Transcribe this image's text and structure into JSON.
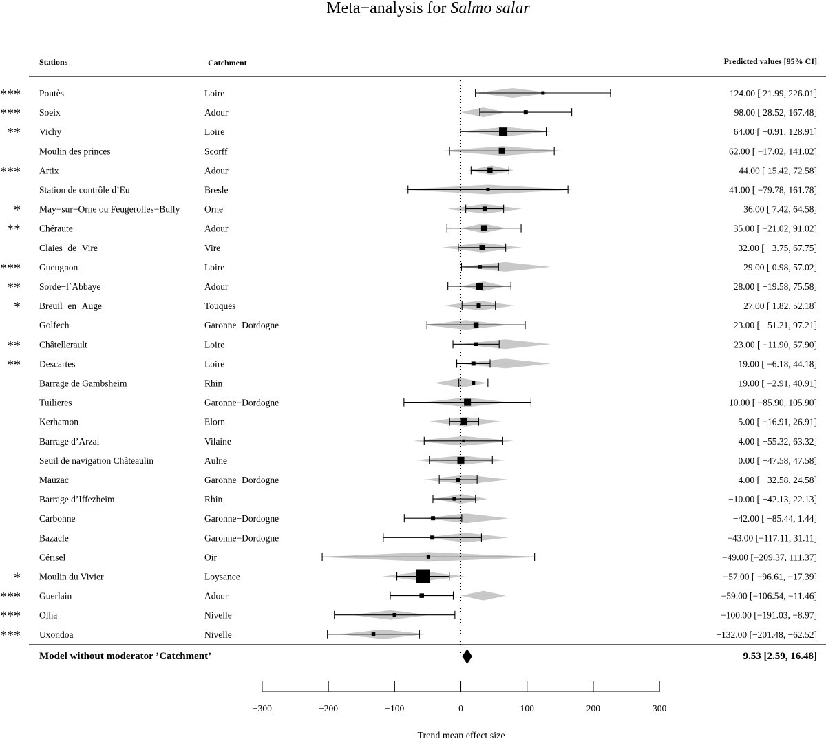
{
  "chart_data": {
    "type": "forest",
    "title_main": "Meta−analysis for ",
    "title_italic": "Salmo salar",
    "headers": {
      "stations": "Stations",
      "catchment": "Catchment",
      "predicted": "Predicted values [95% CI]"
    },
    "xlabel": "Trend mean effect size",
    "xlim": [
      -300,
      300
    ],
    "xticks": [
      -300,
      -200,
      -100,
      0,
      100,
      200,
      300
    ],
    "xtick_labels": [
      "−300",
      "−200",
      "−100",
      "0",
      "100",
      "200",
      "300"
    ],
    "rows": [
      {
        "sig": "***",
        "station": "Poutès",
        "catchment": "Loire",
        "est": 124.0,
        "lo": 21.99,
        "hi": 226.01,
        "label": "124.00 [  21.99, 226.01]",
        "poly": [
          22,
          135
        ],
        "weight": 1.0
      },
      {
        "sig": "***",
        "station": "Soeix",
        "catchment": "Adour",
        "est": 98.0,
        "lo": 28.52,
        "hi": 167.48,
        "label": "98.00 [  28.52, 167.48]",
        "poly": [
          0,
          68
        ],
        "weight": 1.2
      },
      {
        "sig": "**",
        "station": "Vichy",
        "catchment": "Loire",
        "est": 64.0,
        "lo": -0.91,
        "hi": 128.91,
        "label": "64.00 [  −0.91, 128.91]",
        "poly": [
          -2,
          136
        ],
        "weight": 2.4
      },
      {
        "sig": "",
        "station": "Moulin des princes",
        "catchment": "Scorff",
        "est": 62.0,
        "lo": -17.02,
        "hi": 141.02,
        "label": "62.00 [ −17.02, 141.02]",
        "poly": [
          -30,
          156
        ],
        "weight": 1.8
      },
      {
        "sig": "***",
        "station": "Artix",
        "catchment": "Adour",
        "est": 44.0,
        "lo": 15.42,
        "hi": 72.58,
        "label": "44.00 [  15.42,  72.58]",
        "poly": [
          12,
          80
        ],
        "weight": 1.5
      },
      {
        "sig": "",
        "station": "Station de contrôle d’Eu",
        "catchment": "Bresle",
        "est": 41.0,
        "lo": -79.78,
        "hi": 161.78,
        "label": "41.00 [ −79.78, 161.78]",
        "poly": [
          -88,
          170
        ],
        "weight": 1.0
      },
      {
        "sig": "*",
        "station": "May−sur−Orne ou Feugerolles−Bully",
        "catchment": "Orne",
        "est": 36.0,
        "lo": 7.42,
        "hi": 64.58,
        "label": "36.00 [   7.42,  64.58]",
        "poly": [
          -20,
          92
        ],
        "weight": 1.3
      },
      {
        "sig": "**",
        "station": "Chéraute",
        "catchment": "Adour",
        "est": 35.0,
        "lo": -21.02,
        "hi": 91.02,
        "label": "35.00 [ −21.02,  91.02]",
        "poly": [
          0,
          68
        ],
        "weight": 1.7
      },
      {
        "sig": "",
        "station": "Claies−de−Vire",
        "catchment": "Vire",
        "est": 32.0,
        "lo": -3.75,
        "hi": 67.75,
        "label": "32.00 [  −3.75,  67.75]",
        "poly": [
          -28,
          92
        ],
        "weight": 1.5
      },
      {
        "sig": "***",
        "station": "Gueugnon",
        "catchment": "Loire",
        "est": 29.0,
        "lo": 0.98,
        "hi": 57.02,
        "label": "29.00 [   0.98,  57.02]",
        "poly": [
          -2,
          136
        ],
        "weight": 1.1
      },
      {
        "sig": "**",
        "station": "Sorde−l`Abbaye",
        "catchment": "Adour",
        "est": 28.0,
        "lo": -19.58,
        "hi": 75.58,
        "label": "28.00 [ −19.58,  75.58]",
        "poly": [
          0,
          68
        ],
        "weight": 2.0
      },
      {
        "sig": "*",
        "station": "Breuil−en−Auge",
        "catchment": "Touques",
        "est": 27.0,
        "lo": 1.82,
        "hi": 52.18,
        "label": "27.00 [   1.82,  52.18]",
        "poly": [
          -26,
          82
        ],
        "weight": 1.2
      },
      {
        "sig": "",
        "station": "Golfech",
        "catchment": "Garonne−Dordogne",
        "est": 23.0,
        "lo": -51.21,
        "hi": 97.21,
        "label": "23.00 [ −51.21,  97.21]",
        "poly": [
          -56,
          72
        ],
        "weight": 1.5
      },
      {
        "sig": "**",
        "station": "Châtellerault",
        "catchment": "Loire",
        "est": 23.0,
        "lo": -11.9,
        "hi": 57.9,
        "label": "23.00 [ −11.90,  57.90]",
        "poly": [
          -2,
          136
        ],
        "weight": 1.1
      },
      {
        "sig": "**",
        "station": "Descartes",
        "catchment": "Loire",
        "est": 19.0,
        "lo": -6.18,
        "hi": 44.18,
        "label": "19.00 [  −6.18,  44.18]",
        "poly": [
          -2,
          136
        ],
        "weight": 1.2
      },
      {
        "sig": "",
        "station": "Barrage de Gambsheim",
        "catchment": "Rhin",
        "est": 19.0,
        "lo": -2.91,
        "hi": 40.91,
        "label": "19.00 [  −2.91,  40.91]",
        "poly": [
          -40,
          40
        ],
        "weight": 1.0
      },
      {
        "sig": "",
        "station": "Tuilieres",
        "catchment": "Garonne−Dordogne",
        "est": 10.0,
        "lo": -85.9,
        "hi": 105.9,
        "label": "10.00 [ −85.90, 105.90]",
        "poly": [
          -56,
          72
        ],
        "weight": 2.0
      },
      {
        "sig": "",
        "station": "Kerhamon",
        "catchment": "Elorn",
        "est": 5.0,
        "lo": -16.91,
        "hi": 26.91,
        "label": "5.00 [ −16.91,  26.91]",
        "poly": [
          -48,
          60
        ],
        "weight": 1.9
      },
      {
        "sig": "",
        "station": "Barrage d’Arzal",
        "catchment": "Vilaine",
        "est": 4.0,
        "lo": -55.32,
        "hi": 63.32,
        "label": "4.00 [ −55.32,  63.32]",
        "poly": [
          -72,
          80
        ],
        "weight": 0.8
      },
      {
        "sig": "",
        "station": "Seuil de navigation Châteaulin",
        "catchment": "Aulne",
        "est": 0.0,
        "lo": -47.58,
        "hi": 47.58,
        "label": "0.00 [ −47.58,  47.58]",
        "poly": [
          -68,
          68
        ],
        "weight": 2.0
      },
      {
        "sig": "",
        "station": "Mauzac",
        "catchment": "Garonne−Dordogne",
        "est": -4.0,
        "lo": -32.58,
        "hi": 24.58,
        "label": "−4.00 [ −32.58,  24.58]",
        "poly": [
          -56,
          72
        ],
        "weight": 1.2
      },
      {
        "sig": "",
        "station": "Barrage d’Iffezheim",
        "catchment": "Rhin",
        "est": -10.0,
        "lo": -42.13,
        "hi": 22.13,
        "label": "−10.00 [ −42.13,  22.13]",
        "poly": [
          -40,
          40
        ],
        "weight": 1.0
      },
      {
        "sig": "",
        "station": "Carbonne",
        "catchment": "Garonne−Dordogne",
        "est": -42.0,
        "lo": -85.44,
        "hi": 1.44,
        "label": "−42.00 [ −85.44,   1.44]",
        "poly": [
          -56,
          72
        ],
        "weight": 1.2
      },
      {
        "sig": "",
        "station": "Bazacle",
        "catchment": "Garonne−Dordogne",
        "est": -43.0,
        "lo": -117.11,
        "hi": 31.11,
        "label": "−43.00 [−117.11,  31.11]",
        "poly": [
          -56,
          72
        ],
        "weight": 1.2
      },
      {
        "sig": "",
        "station": "Cérisel",
        "catchment": "Oir",
        "est": -49.0,
        "lo": -209.37,
        "hi": 111.37,
        "label": "−49.00 [−209.37, 111.37]",
        "poly": [
          -216,
          118
        ],
        "weight": 1.0
      },
      {
        "sig": "*",
        "station": "Moulin du Vivier",
        "catchment": "Loysance",
        "est": -57.0,
        "lo": -96.61,
        "hi": -17.39,
        "label": "−57.00 [ −96.61, −17.39]",
        "poly": [
          -118,
          6
        ],
        "weight": 4.0
      },
      {
        "sig": "***",
        "station": "Guerlain",
        "catchment": "Adour",
        "est": -59.0,
        "lo": -106.54,
        "hi": -11.46,
        "label": "−59.00 [−106.54, −11.46]",
        "poly": [
          0,
          68
        ],
        "weight": 1.3
      },
      {
        "sig": "***",
        "station": "Olha",
        "catchment": "Nivelle",
        "est": -100.0,
        "lo": -191.03,
        "hi": -8.97,
        "label": "−100.00 [−191.03,  −8.97]",
        "poly": [
          -164,
          -48
        ],
        "weight": 1.1
      },
      {
        "sig": "***",
        "station": "Uxondoa",
        "catchment": "Nivelle",
        "est": -132.0,
        "lo": -201.48,
        "hi": -62.52,
        "label": "−132.00 [−201.48, −62.52]",
        "poly": [
          -184,
          -52
        ],
        "weight": 1.1
      }
    ],
    "summary": {
      "label": "Model without moderator ’Catchment’",
      "est": 9.53,
      "lo": 2.59,
      "hi": 16.48,
      "value_text": "9.53 [2.59, 16.48]"
    },
    "colors": {
      "polygon": "#c8c8c8",
      "ink": "#000000"
    },
    "reference_line": 0,
    "grid": false
  }
}
